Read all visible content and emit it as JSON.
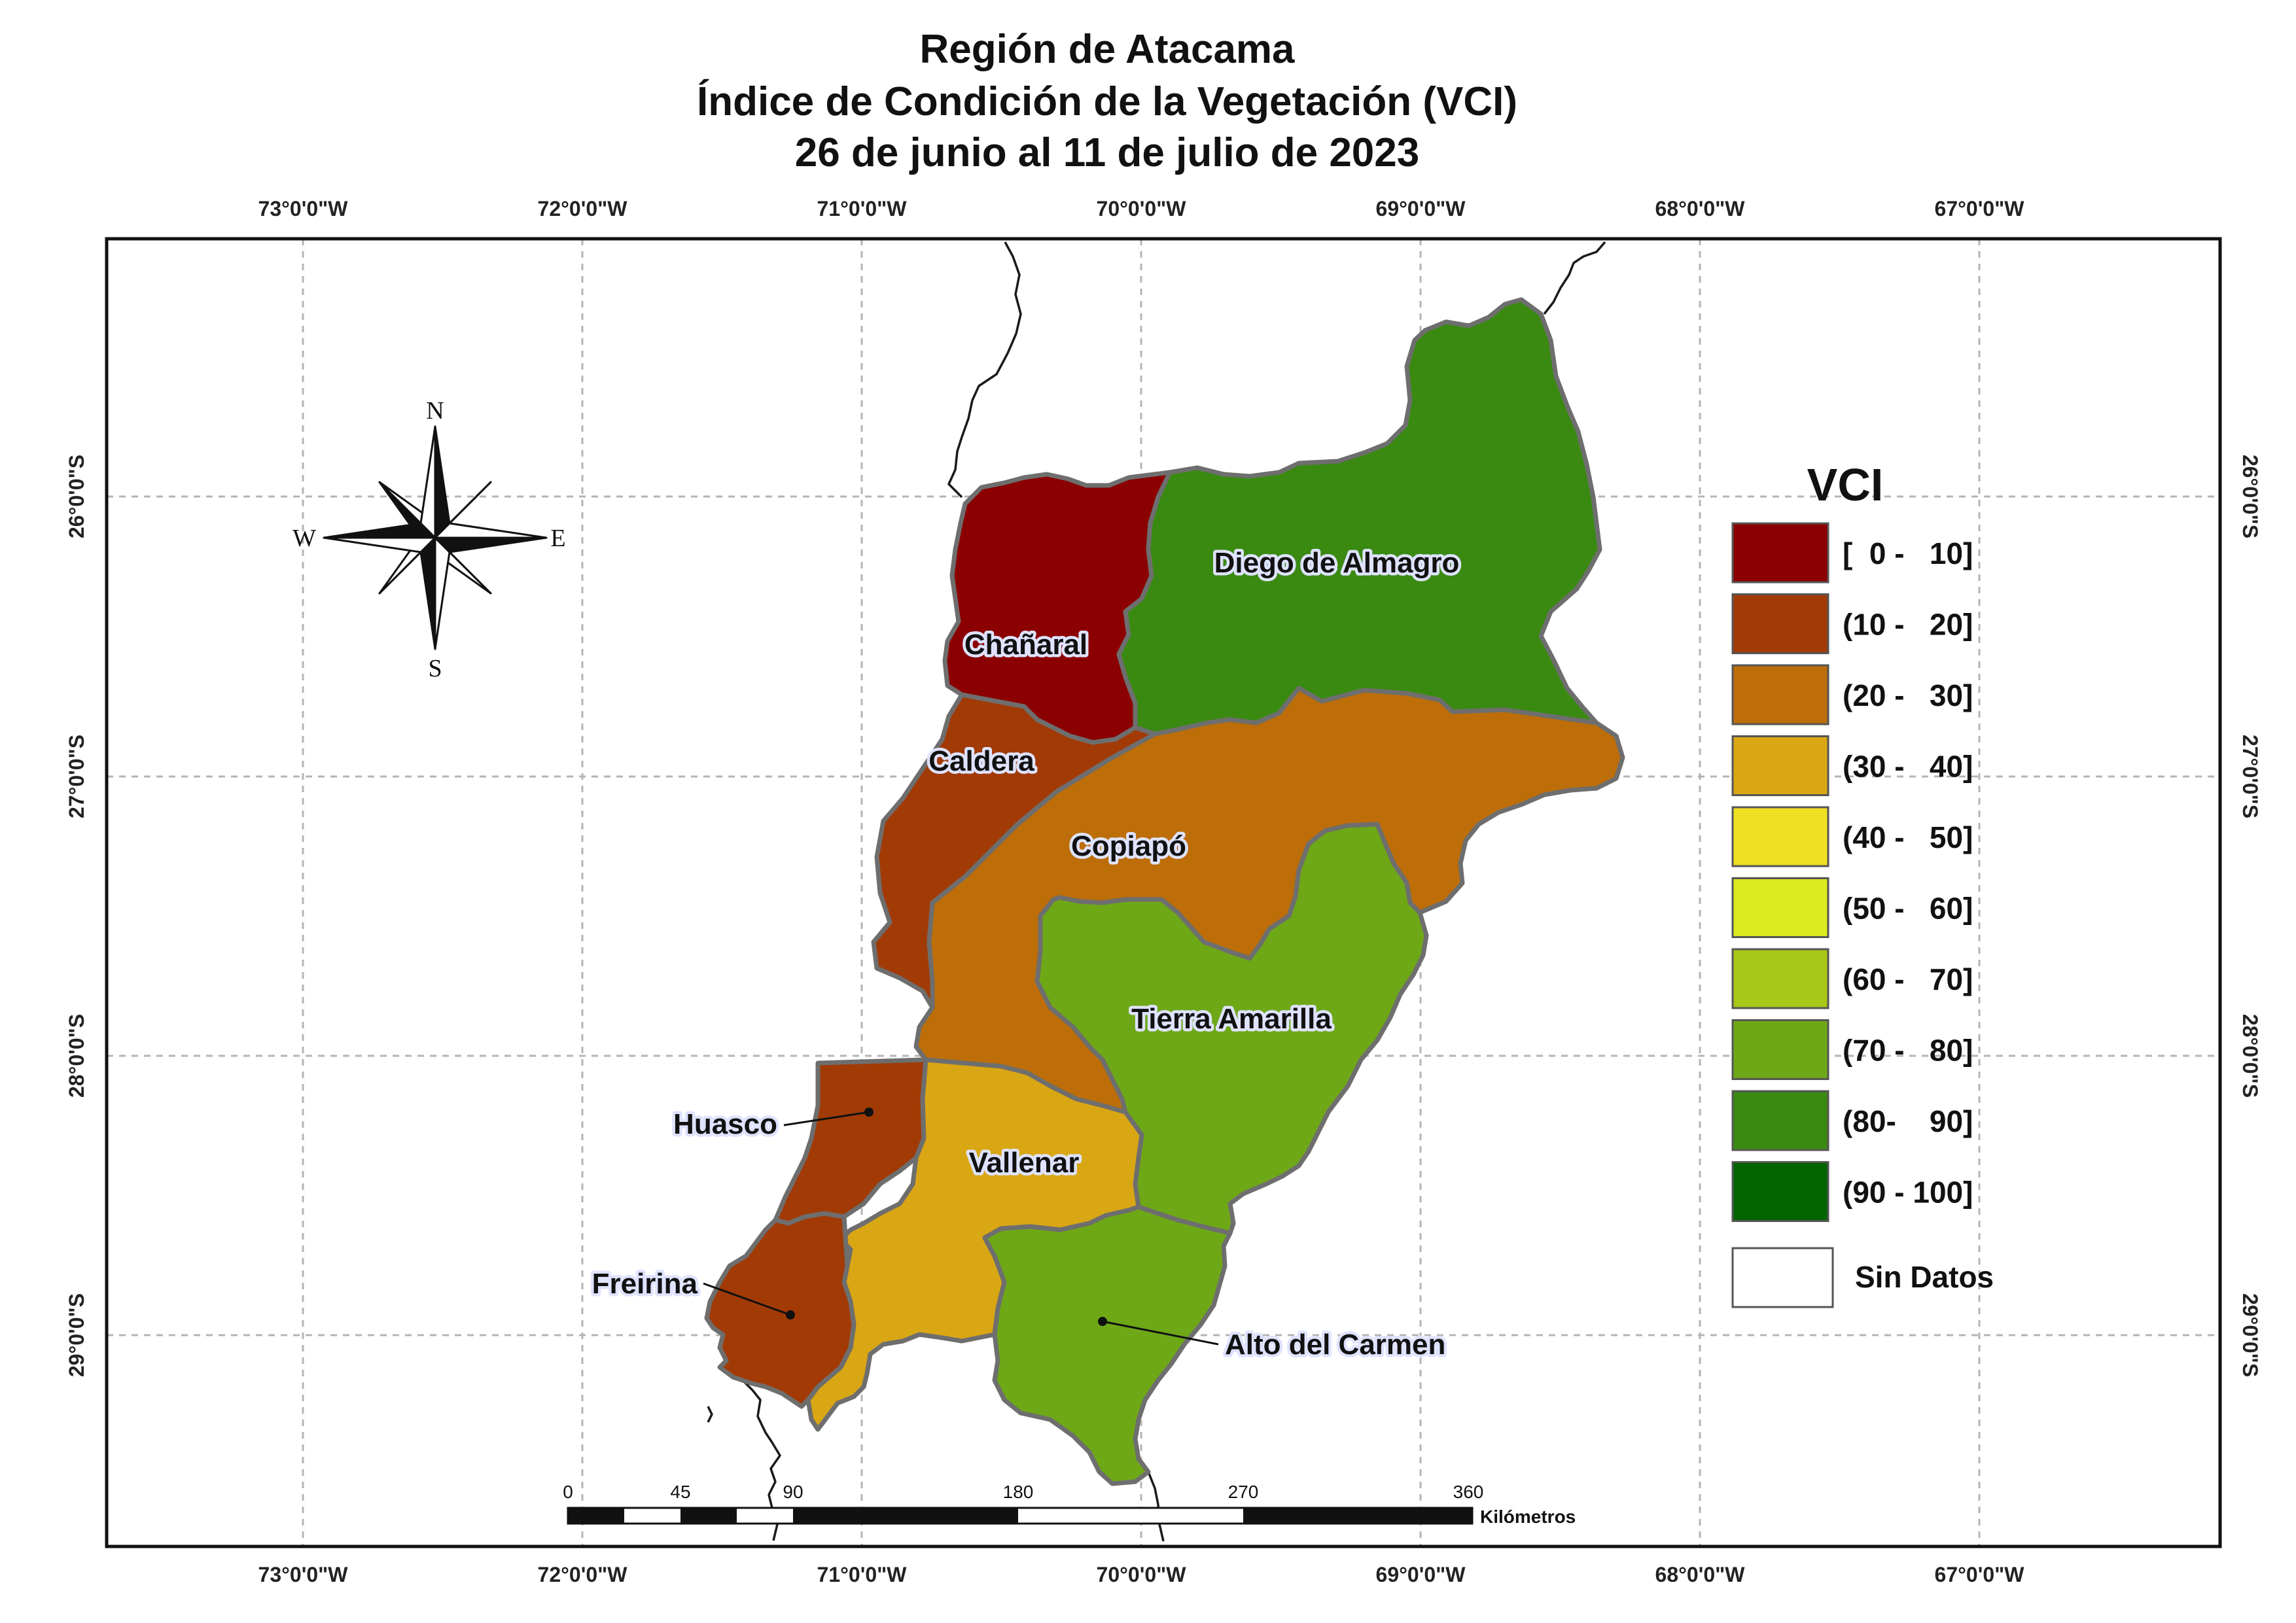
{
  "title": {
    "line1": "Región de Atacama",
    "line2": "Índice de Condición de la Vegetación (VCI)",
    "line3": "26 de junio al 11 de julio de 2023"
  },
  "longitude_labels": [
    "73°0'0\"W",
    "72°0'0\"W",
    "71°0'0\"W",
    "70°0'0\"W",
    "69°0'0\"W",
    "68°0'0\"W",
    "67°0'0\"W"
  ],
  "latitude_labels": [
    "26°0'0\"S",
    "27°0'0\"S",
    "28°0'0\"S",
    "29°0'0\"S"
  ],
  "compass": {
    "north": "N",
    "south": "S",
    "east": "E",
    "west": "W"
  },
  "communes": [
    {
      "name": "Chañaral",
      "vci_class": "[ 0 -  10]",
      "color": "#8b0000"
    },
    {
      "name": "Diego de Almagro",
      "vci_class": "(80-  90]",
      "color": "#3a8a12"
    },
    {
      "name": "Caldera",
      "vci_class": "(10 -  20]",
      "color": "#a23a06"
    },
    {
      "name": "Copiapó",
      "vci_class": "(20 -  30]",
      "color": "#bd6e09"
    },
    {
      "name": "Tierra Amarilla",
      "vci_class": "(70 -  80]",
      "color": "#6ea817"
    },
    {
      "name": "Huasco",
      "vci_class": "(10 -  20]",
      "color": "#a23a06"
    },
    {
      "name": "Vallenar",
      "vci_class": "(30 -  40]",
      "color": "#d9a614"
    },
    {
      "name": "Freirina",
      "vci_class": "(10 -  20]",
      "color": "#a23a06"
    },
    {
      "name": "Alto del Carmen",
      "vci_class": "(70 -  80]",
      "color": "#6ea817"
    }
  ],
  "legend": {
    "title": "VCI",
    "classes": [
      {
        "label": "[  0 -   10]",
        "color": "#8b0000"
      },
      {
        "label": "(10 -   20]",
        "color": "#a23a06"
      },
      {
        "label": "(20 -   30]",
        "color": "#bd6e09"
      },
      {
        "label": "(30 -   40]",
        "color": "#d9a614"
      },
      {
        "label": "(40 -   50]",
        "color": "#efe023"
      },
      {
        "label": "(50 -   60]",
        "color": "#dcea1f"
      },
      {
        "label": "(60 -   70]",
        "color": "#a8c818"
      },
      {
        "label": "(70 -   80]",
        "color": "#6ea817"
      },
      {
        "label": "(80-    90]",
        "color": "#3a8a12"
      },
      {
        "label": "(90 - 100]",
        "color": "#006400"
      }
    ],
    "no_data": {
      "label": "Sin Datos",
      "color": "#ffffff"
    }
  },
  "scale_bar": {
    "ticks": [
      "0",
      "45",
      "90",
      "180",
      "270",
      "360"
    ],
    "unit": "Kilómetros"
  }
}
